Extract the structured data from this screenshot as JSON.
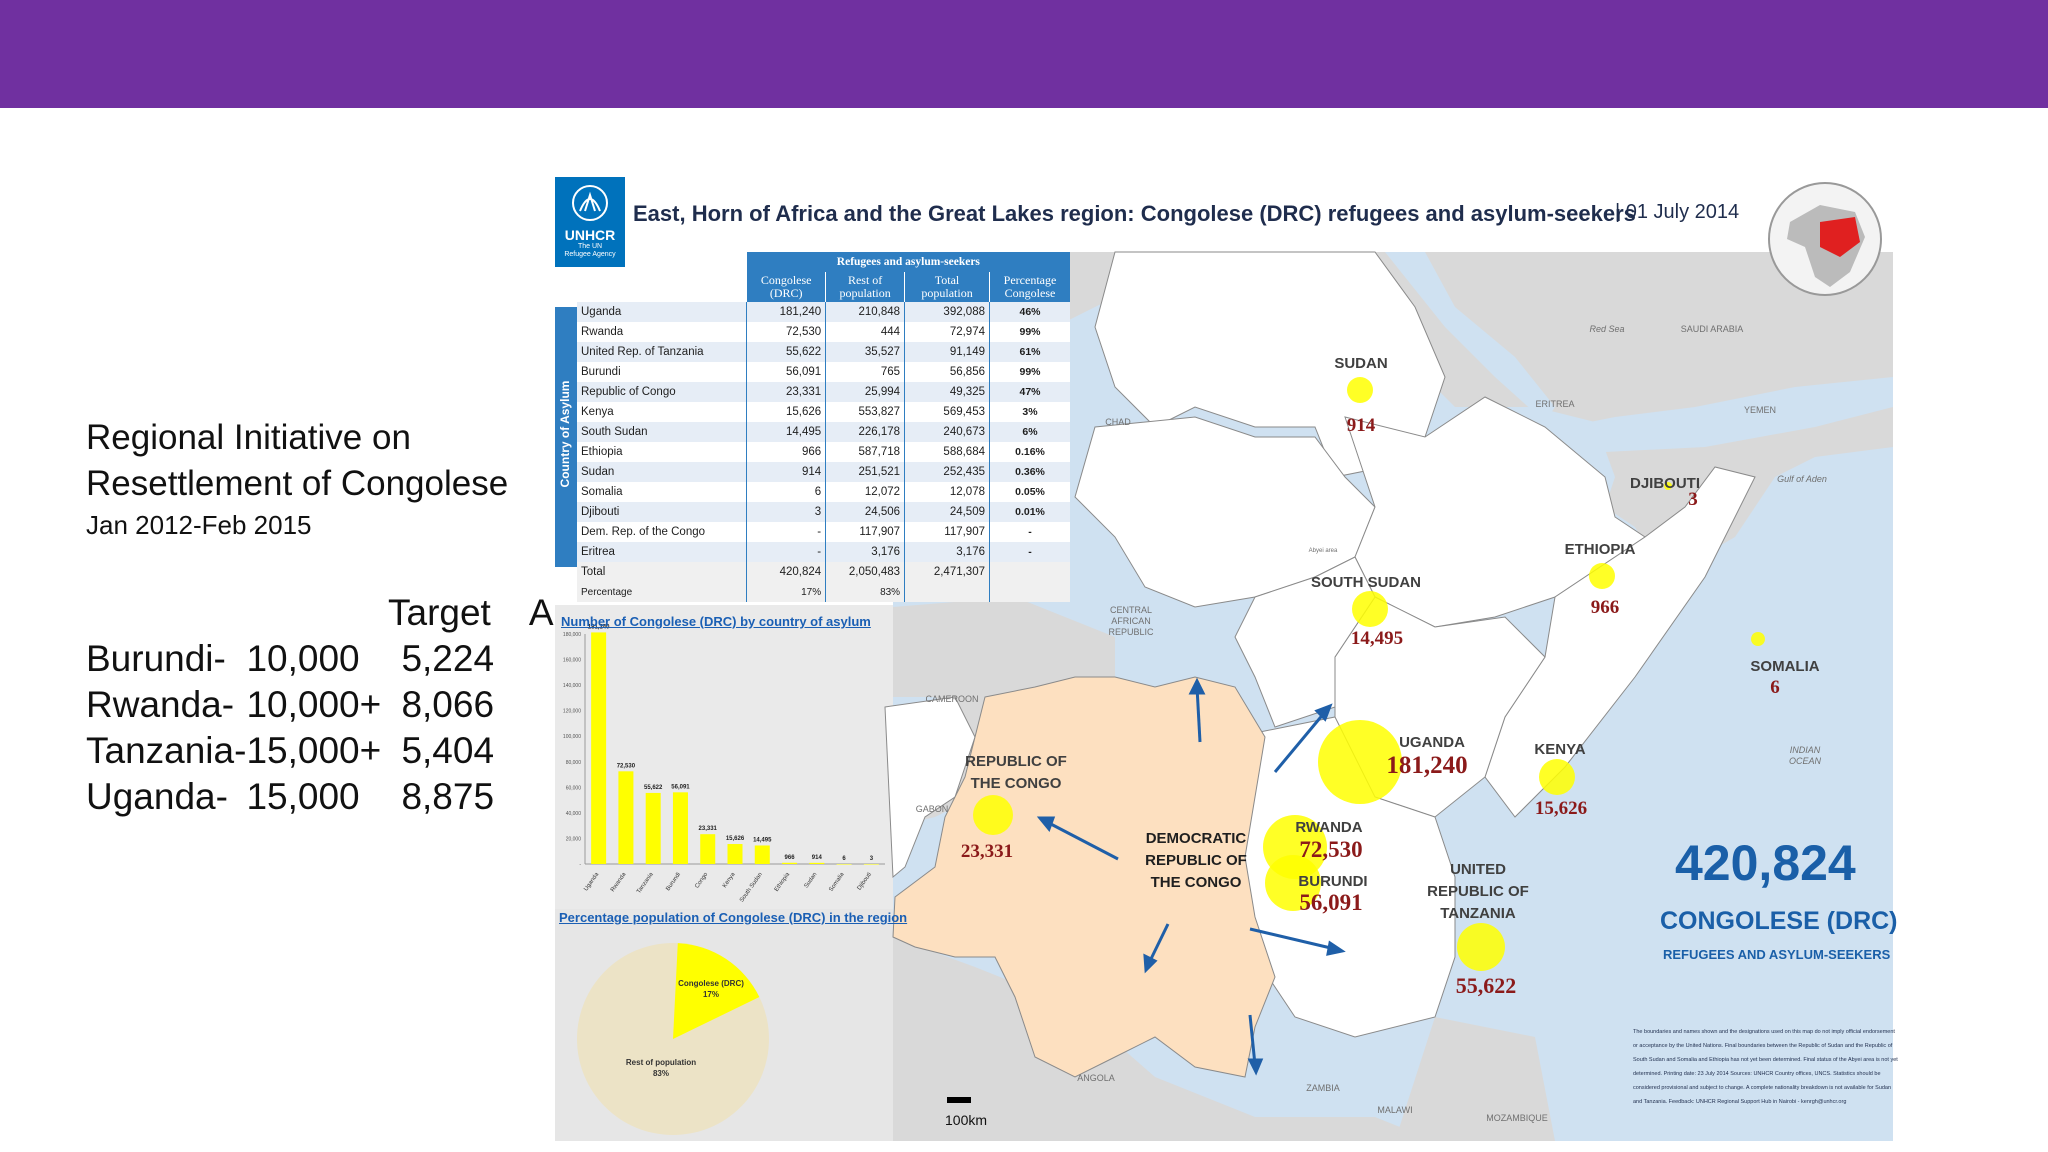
{
  "slide": {
    "accent_color": "#7030a0",
    "title_line1": "Regional Initiative on",
    "title_line2": "Resettlement of Congolese",
    "period": "Jan 2012-Feb 2015",
    "headers": {
      "target": "Target",
      "actual": "Actual"
    },
    "rows": [
      {
        "country": "Burundi-",
        "target": "10,000",
        "actual": "5,224"
      },
      {
        "country": "Rwanda-",
        "target": "10,000+",
        "actual": "8,066"
      },
      {
        "country": "Tanzania-",
        "target": "15,000+",
        "actual": "5,404"
      },
      {
        "country": "Uganda-",
        "target": "15,000",
        "actual": "8,875"
      }
    ]
  },
  "map": {
    "logo_text": "UNHCR",
    "logo_sub1": "The UN",
    "logo_sub2": "Refugee Agency",
    "title": "East, Horn of Africa and the Great Lakes region: Congolese (DRC) refugees and asylum-seekers",
    "date": "| 01 July 2014",
    "table": {
      "group_header": "Refugees and asylum-seekers",
      "side_label": "Country of Asylum",
      "col1": [
        "Congolese",
        "(DRC)"
      ],
      "col2": [
        "Rest of",
        "population"
      ],
      "col3": [
        "Total",
        "population"
      ],
      "col4": [
        "Percentage",
        "Congolese"
      ],
      "rows": [
        [
          "Uganda",
          "181,240",
          "210,848",
          "392,088",
          "46%"
        ],
        [
          "Rwanda",
          "72,530",
          "444",
          "72,974",
          "99%"
        ],
        [
          "United Rep. of Tanzania",
          "55,622",
          "35,527",
          "91,149",
          "61%"
        ],
        [
          "Burundi",
          "56,091",
          "765",
          "56,856",
          "99%"
        ],
        [
          "Republic of Congo",
          "23,331",
          "25,994",
          "49,325",
          "47%"
        ],
        [
          "Kenya",
          "15,626",
          "553,827",
          "569,453",
          "3%"
        ],
        [
          "South Sudan",
          "14,495",
          "226,178",
          "240,673",
          "6%"
        ],
        [
          "Ethiopia",
          "966",
          "587,718",
          "588,684",
          "0.16%"
        ],
        [
          "Sudan",
          "914",
          "251,521",
          "252,435",
          "0.36%"
        ],
        [
          "Somalia",
          "6",
          "12,072",
          "12,078",
          "0.05%"
        ],
        [
          "Djibouti",
          "3",
          "24,506",
          "24,509",
          "0.01%"
        ],
        [
          "Dem. Rep. of the Congo",
          "-",
          "117,907",
          "117,907",
          "-"
        ],
        [
          "Eritrea",
          "-",
          "3,176",
          "3,176",
          "-"
        ]
      ],
      "total": [
        "Total",
        "420,824",
        "2,050,483",
        "2,471,307",
        ""
      ],
      "percentage": [
        "Percentage",
        "17%",
        "83%",
        "",
        ""
      ]
    },
    "bar_title": "Number of Congolese (DRC) by country of asylum",
    "pie_title": "Percentage population of Congolese (DRC) in the region",
    "pie_labels": {
      "congolese": "Congolese (DRC)",
      "congolese_pct": "17%",
      "rest": "Rest of population",
      "rest_pct": "83%"
    },
    "big_number": "420,824",
    "big_label": "CONGOLESE (DRC)",
    "big_sub": "REFUGEES AND ASYLUM-SEEKERS",
    "scale_label": "100km",
    "disclaimer": "The boundaries and names shown and the designations used on this map do not imply official endorsement or acceptance by the United Nations. Final boundaries between the Republic of Sudan and the Republic of South Sudan and Somalia and Ethiopia has not yet been determined. Final status of the Abyei area is not yet determined. Printing date: 23 July 2014 Sources: UNHCR Country offices, UNCS. Statistics should be considered provisional and subject to change. A complete nationality breakdown is not available for Sudan and Tanzania. Feedback: UNHCR Regional Support Hub in Nairobi - kenrgh@unhcr.org",
    "drc_label": [
      "DEMOCRATIC",
      "REPUBLIC OF",
      "THE CONGO"
    ],
    "country_labels": {
      "sudan": "SUDAN",
      "sudan_v": "914",
      "south_sudan": "SOUTH SUDAN",
      "south_sudan_v": "14,495",
      "ethiopia": "ETHIOPIA",
      "ethiopia_v": "966",
      "djibouti": "DJIBOUTI",
      "djibouti_v": "3",
      "somalia": "SOMALIA",
      "somalia_v": "6",
      "uganda": "UGANDA",
      "uganda_v": "181,240",
      "kenya": "KENYA",
      "kenya_v": "15,626",
      "rwanda": "RWANDA",
      "rwanda_v": "72,530",
      "burundi": "BURUNDI",
      "burundi_v": "56,091",
      "tanzania1": "UNITED",
      "tanzania2": "REPUBLIC OF",
      "tanzania3": "TANZANIA",
      "tanzania_v": "55,622",
      "congo1": "REPUBLIC OF",
      "congo2": "THE CONGO",
      "congo_v": "23,331"
    },
    "minor_labels": {
      "chad": "CHAD",
      "car1": "CENTRAL",
      "car2": "AFRICAN",
      "car3": "REPUBLIC",
      "cameroon": "CAMEROON",
      "gabon": "GABON",
      "angola": "ANGOLA",
      "zambia": "ZAMBIA",
      "malawi": "MALAWI",
      "mozambique": "MOZAMBIQUE",
      "eritrea": "ERITREA",
      "yemen": "YEMEN",
      "saudi": "SAUDI ARABIA",
      "red_sea": "Red Sea",
      "gulf": "Gulf of Aden",
      "indian1": "INDIAN",
      "indian2": "OCEAN",
      "abyei": "Abyei area"
    },
    "chart_data": {
      "type": "bar",
      "title": "Number of Congolese (DRC) by country of asylum",
      "categories": [
        "Uganda",
        "Rwanda",
        "Tanzania",
        "Burundi",
        "Congo",
        "Kenya",
        "South Sudan",
        "Ethiopia",
        "Sudan",
        "Somalia",
        "Djibouti"
      ],
      "values": [
        181240,
        72530,
        55622,
        56091,
        23331,
        15626,
        14495,
        966,
        914,
        6,
        3
      ],
      "value_labels": [
        "181,240",
        "72,530",
        "55,622",
        "56,091",
        "23,331",
        "15,626",
        "14,495",
        "966",
        "914",
        "6",
        "3"
      ],
      "ylim": [
        0,
        180000
      ],
      "yticks": [
        "-",
        "20,000",
        "40,000",
        "60,000",
        "80,000",
        "100,000",
        "120,000",
        "140,000",
        "160,000",
        "180,000"
      ],
      "color": "#ffff00"
    },
    "pie_data": {
      "type": "pie",
      "title": "Percentage population of Congolese (DRC) in the region",
      "slices": [
        {
          "name": "Congolese (DRC)",
          "value": 17,
          "color": "#ffff00"
        },
        {
          "name": "Rest of population",
          "value": 83,
          "color": "#ece3c6"
        }
      ]
    }
  }
}
